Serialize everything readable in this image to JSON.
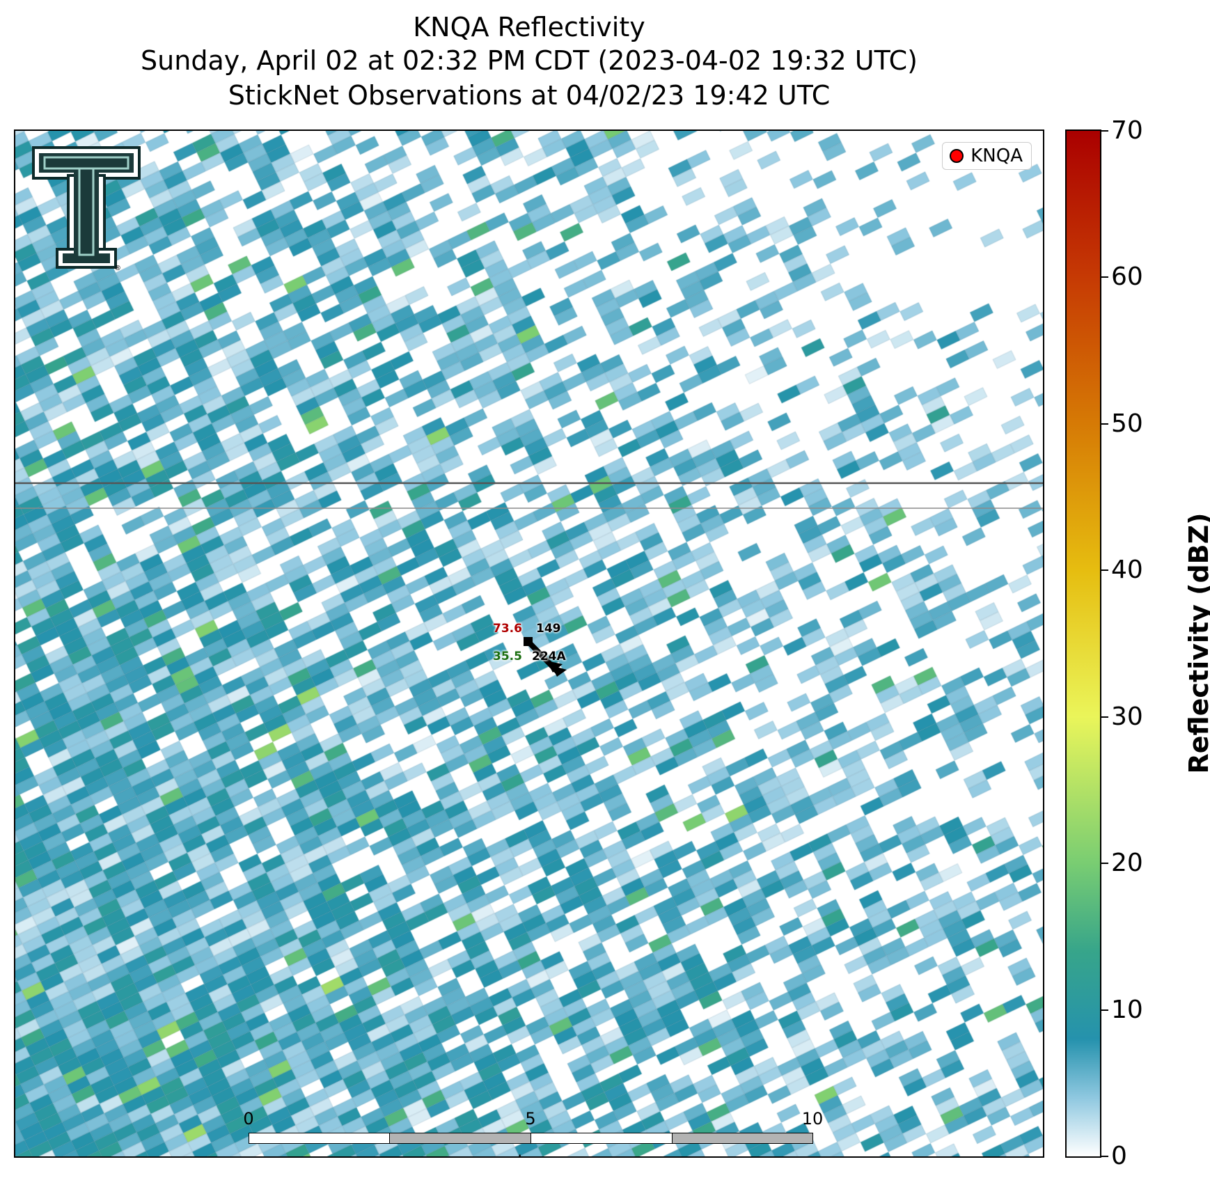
{
  "title": {
    "line1": "KNQA Reflectivity",
    "line2": "Sunday, April 02 at 02:32 PM CDT (2023-04-02 19:32 UTC)",
    "line3": "StickNet Observations at 04/02/23 19:42 UTC"
  },
  "legend": {
    "label": "KNQA",
    "marker_color": "#ff0000"
  },
  "station": {
    "id": "224A",
    "temperature": "73.6",
    "dewpoint": "35.5",
    "pressure": "149",
    "temperature_color": "#b00000",
    "dewpoint_color": "#1a6e10"
  },
  "scalebar": {
    "ticks": [
      "0",
      "5",
      "10"
    ],
    "unit": "km"
  },
  "colorbar": {
    "label": "Reflectivity (dBZ)",
    "ticks": [
      "0",
      "10",
      "20",
      "30",
      "40",
      "50",
      "60",
      "70"
    ],
    "min": 0,
    "max": 70,
    "stops": [
      {
        "value": 0,
        "color": "#ffffff"
      },
      {
        "value": 4,
        "color": "#8fc8e0"
      },
      {
        "value": 8,
        "color": "#2592ad"
      },
      {
        "value": 14,
        "color": "#37a58a"
      },
      {
        "value": 20,
        "color": "#79cd72"
      },
      {
        "value": 30,
        "color": "#eaf55a"
      },
      {
        "value": 40,
        "color": "#e6bd10"
      },
      {
        "value": 50,
        "color": "#d67a05"
      },
      {
        "value": 60,
        "color": "#c63a04"
      },
      {
        "value": 70,
        "color": "#aa0000"
      }
    ]
  },
  "logo": {
    "name": "Texas Tech Double T"
  }
}
